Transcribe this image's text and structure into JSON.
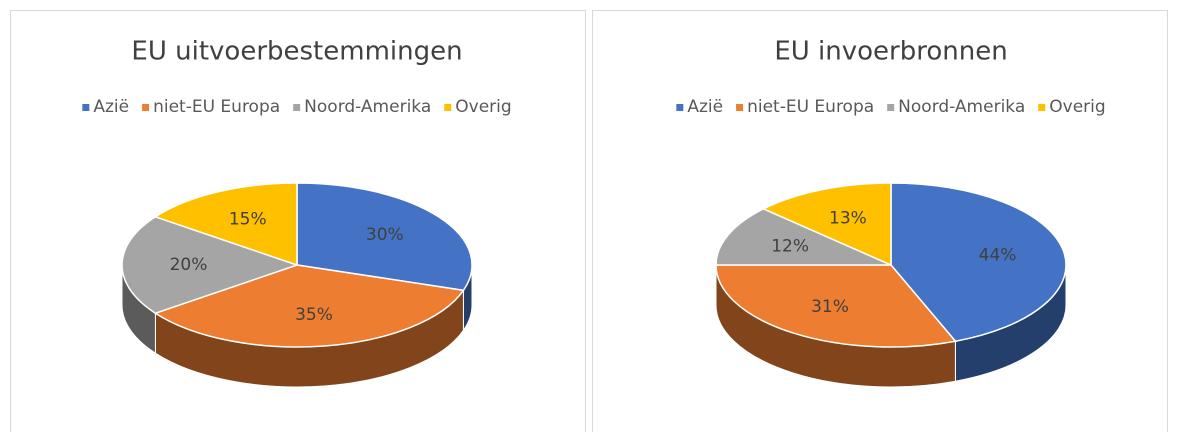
{
  "chart_data": [
    {
      "type": "pie",
      "title": "EU uitvoerbestemmingen",
      "categories": [
        "Azië",
        "niet-EU Europa",
        "Noord-Amerika",
        "Overig"
      ],
      "values": [
        30,
        35,
        20,
        15
      ],
      "value_labels": [
        "30%",
        "35%",
        "20%",
        "15%"
      ],
      "colors": [
        "#4472c4",
        "#ed7d31",
        "#a5a5a5",
        "#ffc000"
      ],
      "legend": "top"
    },
    {
      "type": "pie",
      "title": "EU invoerbronnen",
      "categories": [
        "Azië",
        "niet-EU Europa",
        "Noord-Amerika",
        "Overig"
      ],
      "values": [
        44,
        31,
        12,
        13
      ],
      "value_labels": [
        "44%",
        "31%",
        "12%",
        "13%"
      ],
      "colors": [
        "#4472c4",
        "#ed7d31",
        "#a5a5a5",
        "#ffc000"
      ],
      "legend": "top"
    }
  ]
}
